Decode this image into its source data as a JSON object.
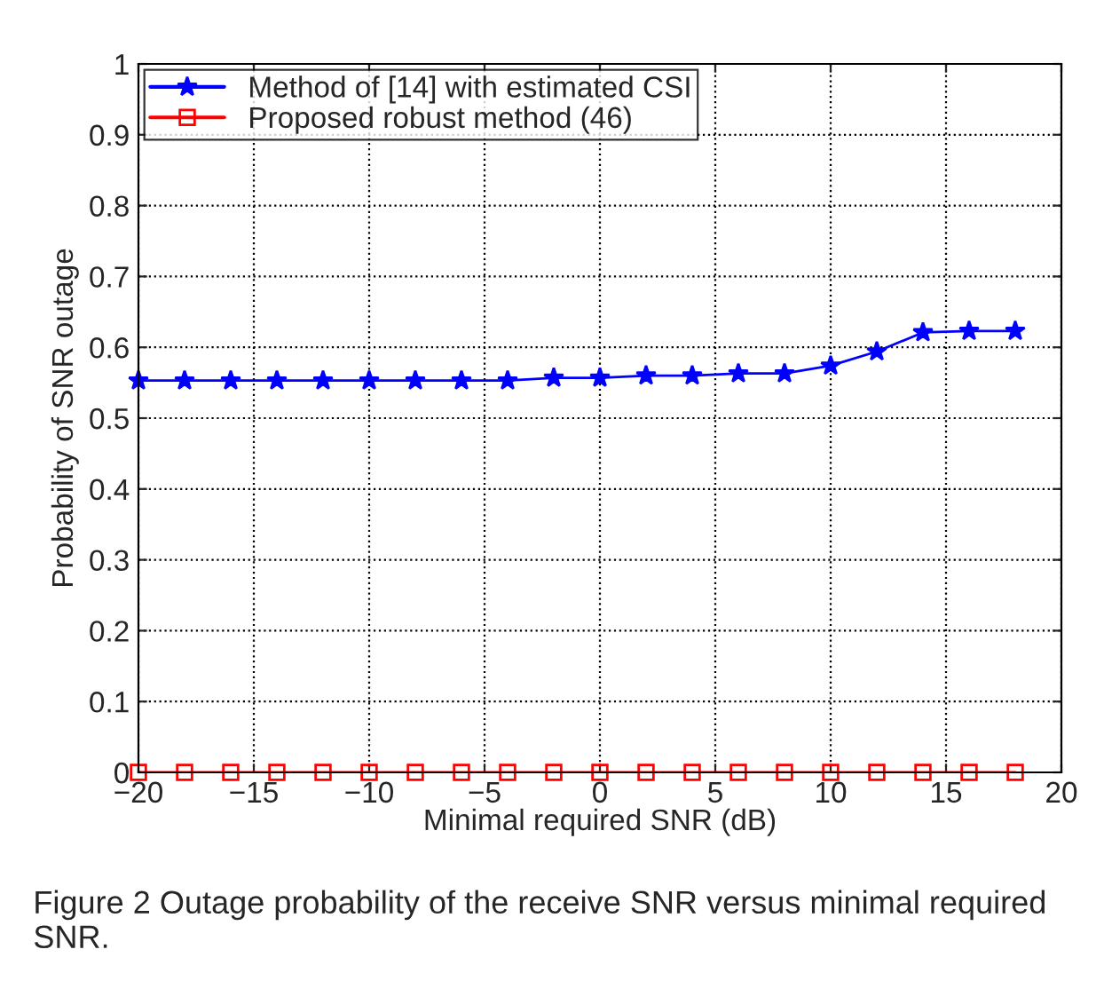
{
  "chart_data": {
    "type": "line",
    "xlabel": "Minimal required SNR (dB)",
    "ylabel": "Probability of SNR outage",
    "x": [
      -20,
      -18,
      -16,
      -14,
      -12,
      -10,
      -8,
      -6,
      -4,
      -2,
      0,
      2,
      4,
      6,
      8,
      10,
      12,
      14,
      16,
      18
    ],
    "series": [
      {
        "name": "Method of [14] with estimated CSI",
        "color": "#0000ff",
        "marker": "star",
        "values": [
          0.553,
          0.553,
          0.553,
          0.553,
          0.553,
          0.553,
          0.553,
          0.553,
          0.553,
          0.557,
          0.557,
          0.56,
          0.56,
          0.563,
          0.563,
          0.574,
          0.594,
          0.621,
          0.623,
          0.623
        ]
      },
      {
        "name": "Proposed robust method (46)",
        "color": "#ff0000",
        "marker": "square",
        "values": [
          0,
          0,
          0,
          0,
          0,
          0,
          0,
          0,
          0,
          0,
          0,
          0,
          0,
          0,
          0,
          0,
          0,
          0,
          0,
          0
        ]
      }
    ],
    "xlim": [
      -20,
      20
    ],
    "xticks": [
      {
        "value": -20,
        "label": "−20"
      },
      {
        "value": -15,
        "label": "−15"
      },
      {
        "value": -10,
        "label": "−10"
      },
      {
        "value": -5,
        "label": "−5"
      },
      0,
      5,
      10,
      15,
      20
    ],
    "ylim": [
      0,
      1
    ],
    "yticks": [
      0,
      0.1,
      0.2,
      0.3,
      0.4,
      0.5,
      0.6,
      0.7,
      0.8,
      0.9,
      1
    ],
    "grid": true,
    "legend": "top left",
    "line_style": "solid",
    "annotations": [
      "Figure 2 Outage probability of the receive SNR versus minimal required SNR."
    ]
  }
}
